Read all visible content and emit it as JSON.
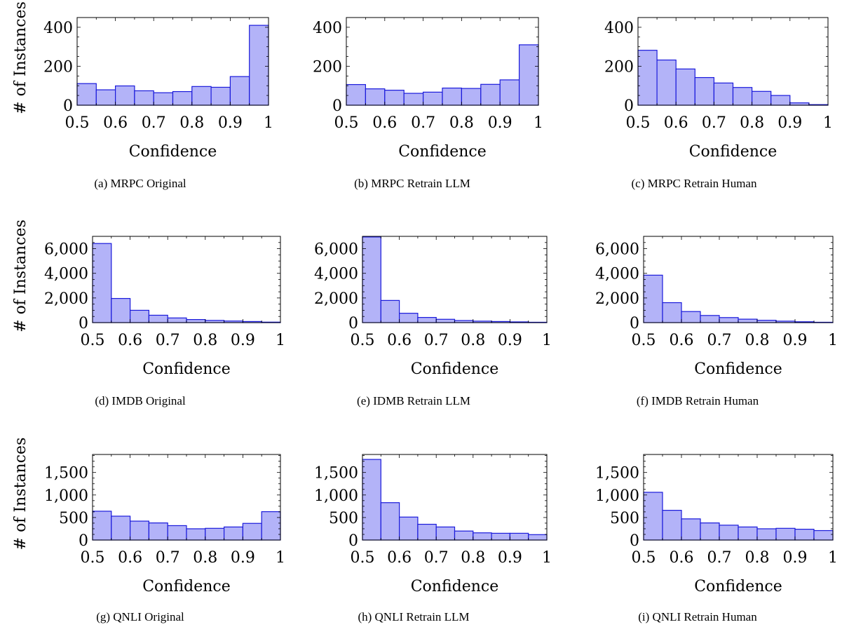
{
  "chart_data": [
    {
      "type": "bar",
      "caption": "(a) MRPC Original",
      "xlabel": "Confidence",
      "ylabel": "# of Instances",
      "xlim": [
        0.5,
        1.0
      ],
      "ylim": [
        0,
        450
      ],
      "xticks": [
        "0.5",
        "0.6",
        "0.7",
        "0.8",
        "0.9",
        "1"
      ],
      "yticks": [
        {
          "value": 0,
          "label": "0"
        },
        {
          "value": 200,
          "label": "200"
        },
        {
          "value": 400,
          "label": "400"
        }
      ],
      "bin_edges": [
        0.5,
        0.55,
        0.6,
        0.65,
        0.7,
        0.75,
        0.8,
        0.85,
        0.9,
        0.95,
        1.0
      ],
      "values": [
        111,
        79,
        99,
        74,
        64,
        70,
        96,
        92,
        147,
        410
      ]
    },
    {
      "type": "bar",
      "caption": "(b) MRPC Retrain LLM",
      "xlabel": "Confidence",
      "ylabel": "",
      "xlim": [
        0.5,
        1.0
      ],
      "ylim": [
        0,
        450
      ],
      "xticks": [
        "0.5",
        "0.6",
        "0.7",
        "0.8",
        "0.9",
        "1"
      ],
      "yticks": [
        {
          "value": 0,
          "label": "0"
        },
        {
          "value": 200,
          "label": "200"
        },
        {
          "value": 400,
          "label": "400"
        }
      ],
      "bin_edges": [
        0.5,
        0.55,
        0.6,
        0.65,
        0.7,
        0.75,
        0.8,
        0.85,
        0.9,
        0.95,
        1.0
      ],
      "values": [
        106,
        84,
        77,
        61,
        67,
        88,
        86,
        107,
        130,
        310
      ]
    },
    {
      "type": "bar",
      "caption": "(c) MRPC Retrain Human",
      "xlabel": "Confidence",
      "ylabel": "",
      "xlim": [
        0.5,
        1.0
      ],
      "ylim": [
        0,
        450
      ],
      "xticks": [
        "0.5",
        "0.6",
        "0.7",
        "0.8",
        "0.9",
        "1"
      ],
      "yticks": [
        {
          "value": 0,
          "label": "0"
        },
        {
          "value": 200,
          "label": "200"
        },
        {
          "value": 400,
          "label": "400"
        }
      ],
      "bin_edges": [
        0.5,
        0.55,
        0.6,
        0.65,
        0.7,
        0.75,
        0.8,
        0.85,
        0.9,
        0.95,
        1.0
      ],
      "values": [
        282,
        232,
        186,
        142,
        114,
        91,
        71,
        50,
        12,
        3
      ]
    },
    {
      "type": "bar",
      "caption": "(d) IMDB Original",
      "xlabel": "Confidence",
      "ylabel": "# of Instances",
      "xlim": [
        0.5,
        1.0
      ],
      "ylim": [
        0,
        7000
      ],
      "xticks": [
        "0.5",
        "0.6",
        "0.7",
        "0.8",
        "0.9",
        "1"
      ],
      "yticks": [
        {
          "value": 0,
          "label": "0"
        },
        {
          "value": 2000,
          "label": "2,000"
        },
        {
          "value": 4000,
          "label": "4,000"
        },
        {
          "value": 6000,
          "label": "6,000"
        }
      ],
      "bin_edges": [
        0.5,
        0.55,
        0.6,
        0.65,
        0.7,
        0.75,
        0.8,
        0.85,
        0.9,
        0.95,
        1.0
      ],
      "values": [
        6420,
        1960,
        1000,
        600,
        380,
        250,
        180,
        130,
        90,
        40
      ]
    },
    {
      "type": "bar",
      "caption": "(e) IDMB Retrain LLM",
      "xlabel": "Confidence",
      "ylabel": "",
      "xlim": [
        0.5,
        1.0
      ],
      "ylim": [
        0,
        7000
      ],
      "xticks": [
        "0.5",
        "0.6",
        "0.7",
        "0.8",
        "0.9",
        "1"
      ],
      "yticks": [
        {
          "value": 0,
          "label": "0"
        },
        {
          "value": 2000,
          "label": "2,000"
        },
        {
          "value": 4000,
          "label": "4,000"
        },
        {
          "value": 6000,
          "label": "6,000"
        }
      ],
      "bin_edges": [
        0.5,
        0.55,
        0.6,
        0.65,
        0.7,
        0.75,
        0.8,
        0.85,
        0.9,
        0.95,
        1.0
      ],
      "values": [
        6950,
        1800,
        760,
        420,
        270,
        170,
        120,
        90,
        60,
        30
      ]
    },
    {
      "type": "bar",
      "caption": "(f) IMDB Retrain Human",
      "xlabel": "Confidence",
      "ylabel": "",
      "xlim": [
        0.5,
        1.0
      ],
      "ylim": [
        0,
        7000
      ],
      "xticks": [
        "0.5",
        "0.6",
        "0.7",
        "0.8",
        "0.9",
        "1"
      ],
      "yticks": [
        {
          "value": 0,
          "label": "0"
        },
        {
          "value": 2000,
          "label": "2,000"
        },
        {
          "value": 4000,
          "label": "4,000"
        },
        {
          "value": 6000,
          "label": "6,000"
        }
      ],
      "bin_edges": [
        0.5,
        0.55,
        0.6,
        0.65,
        0.7,
        0.75,
        0.8,
        0.85,
        0.9,
        0.95,
        1.0
      ],
      "values": [
        3850,
        1620,
        900,
        580,
        410,
        280,
        190,
        120,
        70,
        30
      ]
    },
    {
      "type": "bar",
      "caption": "(g) QNLI Original",
      "xlabel": "Confidence",
      "ylabel": "# of Instances",
      "xlim": [
        0.5,
        1.0
      ],
      "ylim": [
        0,
        1900
      ],
      "xticks": [
        "0.5",
        "0.6",
        "0.7",
        "0.8",
        "0.9",
        "1"
      ],
      "yticks": [
        {
          "value": 0,
          "label": "0"
        },
        {
          "value": 500,
          "label": "500"
        },
        {
          "value": 1000,
          "label": "1,000"
        },
        {
          "value": 1500,
          "label": "1,500"
        }
      ],
      "bin_edges": [
        0.5,
        0.55,
        0.6,
        0.65,
        0.7,
        0.75,
        0.8,
        0.85,
        0.9,
        0.95,
        1.0
      ],
      "values": [
        640,
        530,
        420,
        380,
        320,
        250,
        260,
        290,
        370,
        630
      ]
    },
    {
      "type": "bar",
      "caption": "(h) QNLI Retrain LLM",
      "xlabel": "Confidence",
      "ylabel": "",
      "xlim": [
        0.5,
        1.0
      ],
      "ylim": [
        0,
        1900
      ],
      "xticks": [
        "0.5",
        "0.6",
        "0.7",
        "0.8",
        "0.9",
        "1"
      ],
      "yticks": [
        {
          "value": 0,
          "label": "0"
        },
        {
          "value": 500,
          "label": "500"
        },
        {
          "value": 1000,
          "label": "1,000"
        },
        {
          "value": 1500,
          "label": "1,500"
        }
      ],
      "bin_edges": [
        0.5,
        0.55,
        0.6,
        0.65,
        0.7,
        0.75,
        0.8,
        0.85,
        0.9,
        0.95,
        1.0
      ],
      "values": [
        1790,
        830,
        510,
        350,
        290,
        200,
        160,
        150,
        150,
        120
      ]
    },
    {
      "type": "bar",
      "caption": "(i) QNLI Retrain Human",
      "xlabel": "Confidence",
      "ylabel": "",
      "xlim": [
        0.5,
        1.0
      ],
      "ylim": [
        0,
        1900
      ],
      "xticks": [
        "0.5",
        "0.6",
        "0.7",
        "0.8",
        "0.9",
        "1"
      ],
      "yticks": [
        {
          "value": 0,
          "label": "0"
        },
        {
          "value": 500,
          "label": "500"
        },
        {
          "value": 1000,
          "label": "1,000"
        },
        {
          "value": 1500,
          "label": "1,500"
        }
      ],
      "bin_edges": [
        0.5,
        0.55,
        0.6,
        0.65,
        0.7,
        0.75,
        0.8,
        0.85,
        0.9,
        0.95,
        1.0
      ],
      "values": [
        1060,
        660,
        470,
        380,
        330,
        290,
        250,
        260,
        240,
        210
      ]
    }
  ],
  "style": {
    "bar_fill": "#b3b3f8",
    "bar_stroke": "#1a1adb",
    "axis_color": "#000000"
  }
}
